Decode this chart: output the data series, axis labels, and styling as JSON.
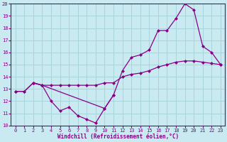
{
  "background_color": "#c8eaf0",
  "grid_color": "#aad4dc",
  "line_color": "#880088",
  "xlabel": "Windchill (Refroidissement éolien,°C)",
  "xlim": [
    -0.5,
    23.5
  ],
  "ylim": [
    10,
    20
  ],
  "yticks": [
    10,
    11,
    12,
    13,
    14,
    15,
    16,
    17,
    18,
    19,
    20
  ],
  "xticks": [
    0,
    1,
    2,
    3,
    4,
    5,
    6,
    7,
    8,
    9,
    10,
    11,
    12,
    13,
    14,
    15,
    16,
    17,
    18,
    19,
    20,
    21,
    22,
    23
  ],
  "line_dip_x": [
    0,
    1,
    2,
    3,
    4,
    5,
    6,
    7,
    8,
    9,
    10,
    11
  ],
  "line_dip_y": [
    12.8,
    12.8,
    13.5,
    13.3,
    12.0,
    11.2,
    11.5,
    10.8,
    10.5,
    10.2,
    11.4,
    12.5
  ],
  "line_rise_x": [
    2,
    3,
    10,
    11,
    12,
    13,
    14,
    15,
    16,
    17,
    18,
    19,
    20,
    21,
    22,
    23
  ],
  "line_rise_y": [
    13.5,
    13.3,
    11.4,
    12.5,
    14.5,
    15.6,
    15.8,
    16.2,
    17.8,
    17.8,
    18.8,
    20.0,
    19.5,
    16.5,
    16.0,
    15.0
  ],
  "line_flat_x": [
    0,
    1,
    2,
    3,
    4,
    5,
    6,
    7,
    8,
    9,
    10,
    11,
    12,
    13,
    14,
    15,
    16,
    17,
    18,
    19,
    20,
    21,
    22,
    23
  ],
  "line_flat_y": [
    12.8,
    12.8,
    13.5,
    13.3,
    13.3,
    13.3,
    13.3,
    13.3,
    13.3,
    13.3,
    13.5,
    13.5,
    14.0,
    14.2,
    14.3,
    14.5,
    14.8,
    15.0,
    15.2,
    15.3,
    15.3,
    15.2,
    15.1,
    15.0
  ]
}
